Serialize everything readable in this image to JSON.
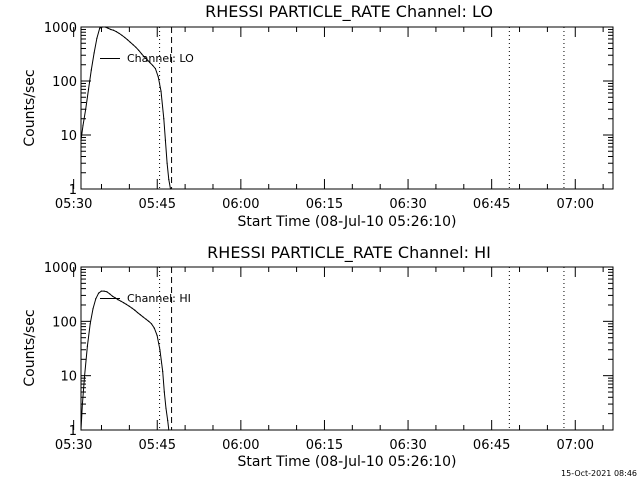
{
  "footer": "15-Oct-2021 08:46",
  "chart_data": [
    {
      "type": "line",
      "title": "RHESSI PARTICLE_RATE Channel: LO",
      "xlabel": "Start Time (08-Jul-10 05:26:10)",
      "ylabel": "Counts/sec",
      "legend": "Channel: LO",
      "yscale": "log",
      "ylim": [
        1,
        1000
      ],
      "yticks": [
        1,
        10,
        100,
        1000
      ],
      "yticklabels": [
        "1",
        "10",
        "100",
        "1000"
      ],
      "xlim_min": [
        5.15,
        100.6
      ],
      "xticks_min": [
        3.83,
        18.83,
        33.83,
        48.83,
        63.83,
        78.83,
        93.83
      ],
      "xticklabels": [
        "05:30",
        "05:45",
        "06:00",
        "06:15",
        "06:30",
        "06:45",
        "07:00"
      ],
      "vlines": [
        {
          "t": 19.25,
          "style": "dotted"
        },
        {
          "t": 21.4,
          "style": "dashed"
        },
        {
          "t": 82.0,
          "style": "dotted"
        },
        {
          "t": 91.8,
          "style": "dotted"
        }
      ],
      "series": [
        {
          "name": "Channel: LO",
          "x": [
            5.15,
            5.5,
            6.0,
            6.5,
            7.0,
            7.5,
            8.0,
            8.5,
            9.0,
            9.5,
            10.0,
            10.5,
            11.0,
            11.5,
            12.0,
            12.5,
            13.0,
            13.5,
            14.0,
            14.5,
            15.0,
            15.5,
            16.0,
            16.5,
            17.0,
            17.5,
            18.0,
            18.5,
            19.0,
            19.5,
            20.0,
            20.3,
            20.6,
            20.9,
            21.2
          ],
          "y": [
            8,
            15,
            30,
            70,
            160,
            330,
            620,
            950,
            1000,
            1000,
            950,
            900,
            870,
            820,
            760,
            700,
            640,
            580,
            520,
            470,
            420,
            370,
            320,
            280,
            250,
            220,
            195,
            170,
            120,
            65,
            20,
            8,
            3,
            1.5,
            1
          ]
        }
      ]
    },
    {
      "type": "line",
      "title": "RHESSI PARTICLE_RATE Channel: HI",
      "xlabel": "Start Time (08-Jul-10 05:26:10)",
      "ylabel": "Counts/sec",
      "legend": "Channel: HI",
      "yscale": "log",
      "ylim": [
        1,
        1000
      ],
      "yticks": [
        1,
        10,
        100,
        1000
      ],
      "yticklabels": [
        "1",
        "10",
        "100",
        "1000"
      ],
      "xlim_min": [
        5.15,
        100.6
      ],
      "xticks_min": [
        3.83,
        18.83,
        33.83,
        48.83,
        63.83,
        78.83,
        93.83
      ],
      "xticklabels": [
        "05:30",
        "05:45",
        "06:00",
        "06:15",
        "06:30",
        "06:45",
        "07:00"
      ],
      "vlines": [
        {
          "t": 19.25,
          "style": "dotted"
        },
        {
          "t": 21.4,
          "style": "dashed"
        },
        {
          "t": 82.0,
          "style": "dotted"
        },
        {
          "t": 91.8,
          "style": "dotted"
        }
      ],
      "series": [
        {
          "name": "Channel: HI",
          "x": [
            5.15,
            5.4,
            5.8,
            6.3,
            6.8,
            7.3,
            7.8,
            8.3,
            8.8,
            9.3,
            9.8,
            10.3,
            10.8,
            11.3,
            11.8,
            12.3,
            12.8,
            13.3,
            13.8,
            14.3,
            14.8,
            15.3,
            15.8,
            16.3,
            16.8,
            17.3,
            17.8,
            18.3,
            18.8,
            19.3,
            19.8,
            20.1,
            20.4,
            20.7,
            20.9
          ],
          "y": [
            1,
            3,
            10,
            35,
            90,
            170,
            260,
            330,
            360,
            360,
            350,
            320,
            290,
            270,
            250,
            235,
            220,
            205,
            190,
            175,
            160,
            145,
            132,
            120,
            110,
            100,
            90,
            75,
            55,
            30,
            12,
            5,
            2.5,
            1.5,
            1
          ]
        }
      ]
    }
  ]
}
